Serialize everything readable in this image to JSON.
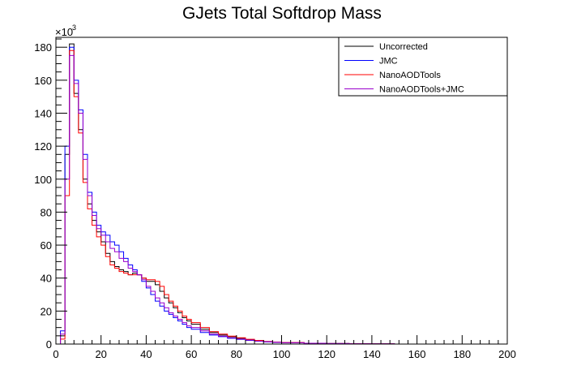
{
  "chart_data": {
    "type": "line",
    "title": "GJets Total Softdrop Mass",
    "xlabel": "",
    "ylabel": "",
    "y_multiplier_label": "×10",
    "y_multiplier_exponent": "3",
    "xlim": [
      0,
      200
    ],
    "ylim": [
      0,
      186
    ],
    "x_ticks": [
      0,
      20,
      40,
      60,
      80,
      100,
      120,
      140,
      160,
      180,
      200
    ],
    "y_ticks": [
      0,
      20,
      40,
      60,
      80,
      100,
      120,
      140,
      160,
      180
    ],
    "grid": false,
    "legend_position": "top-right",
    "x": [
      0,
      2,
      4,
      6,
      8,
      10,
      12,
      14,
      16,
      18,
      20,
      22,
      24,
      26,
      28,
      30,
      32,
      34,
      36,
      38,
      40,
      42,
      44,
      46,
      48,
      50,
      52,
      54,
      56,
      58,
      60,
      64,
      68,
      72,
      76,
      80,
      84,
      88,
      92,
      96,
      100,
      110,
      120,
      130,
      140,
      150,
      200
    ],
    "series": [
      {
        "name": "Uncorrected",
        "color": "#000000",
        "values": [
          0,
          5,
          115,
          182,
          152,
          130,
          100,
          85,
          75,
          68,
          62,
          55,
          50,
          47,
          45,
          44,
          42,
          43,
          42,
          40,
          38,
          38,
          36,
          32,
          28,
          25,
          22,
          19,
          16,
          14,
          12,
          9,
          7,
          5.5,
          4.5,
          3.5,
          2.7,
          2,
          1.5,
          1.1,
          0.8,
          0.5,
          0.3,
          0.2,
          0.1,
          0,
          0
        ]
      },
      {
        "name": "JMC",
        "color": "#0000ff",
        "values": [
          0,
          8,
          120,
          180,
          160,
          142,
          115,
          92,
          80,
          72,
          68,
          66,
          62,
          60,
          56,
          52,
          48,
          45,
          42,
          38,
          34,
          30,
          26,
          23,
          20,
          18,
          16,
          14,
          12,
          10,
          9,
          7,
          5.5,
          4.5,
          3.5,
          2.8,
          2.2,
          1.7,
          1.3,
          1,
          0.8,
          0.5,
          0.3,
          0.2,
          0.1,
          0,
          0
        ]
      },
      {
        "name": "NanoAODTools",
        "color": "#ff0000",
        "values": [
          0,
          3,
          90,
          178,
          150,
          128,
          98,
          82,
          72,
          65,
          60,
          53,
          48,
          46,
          44,
          43,
          42,
          42,
          42,
          40,
          39,
          39,
          38,
          35,
          30,
          26,
          23,
          20,
          17,
          15,
          13,
          10,
          7.5,
          6,
          4.8,
          3.8,
          2.9,
          2.2,
          1.6,
          1.2,
          0.9,
          0.5,
          0.3,
          0.2,
          0.1,
          0,
          0
        ]
      },
      {
        "name": "NanoAODTools+JMC",
        "color": "#9900cc",
        "values": [
          0,
          6,
          100,
          175,
          158,
          140,
          112,
          90,
          78,
          70,
          66,
          62,
          58,
          56,
          52,
          50,
          46,
          44,
          42,
          39,
          35,
          32,
          28,
          25,
          22,
          19,
          17,
          15,
          13,
          11,
          10,
          8,
          6,
          4.8,
          3.8,
          3,
          2.4,
          1.8,
          1.4,
          1.1,
          0.8,
          0.5,
          0.3,
          0.2,
          0.1,
          0,
          0
        ]
      }
    ]
  }
}
